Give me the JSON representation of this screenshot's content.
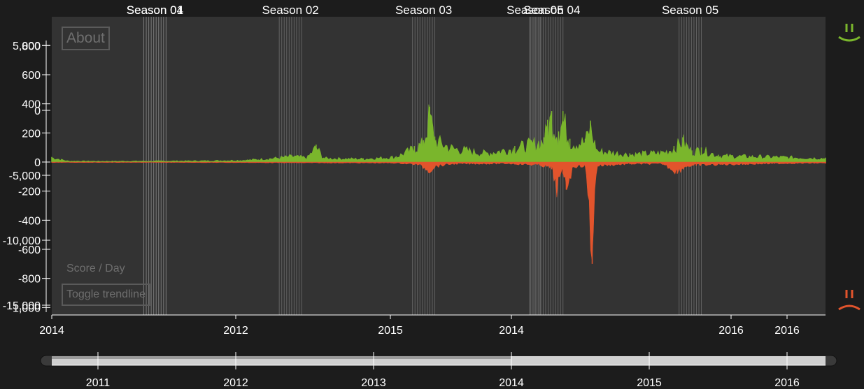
{
  "ui": {
    "about_label": "About",
    "score_label": "Score / Day",
    "trendline_label": "Toggle trendline",
    "positive_icon": "happy-face-icon",
    "negative_icon": "sad-face-icon"
  },
  "colors": {
    "background": "#1c1c1c",
    "plot_background": "#333333",
    "positive": "#7ab62c",
    "negative": "#e2542c",
    "season_line": "#8a8a8a",
    "brush_fill": "#d0d0d0"
  },
  "chart_data": {
    "type": "area",
    "title": "",
    "xlabel": "",
    "ylabel": "Score / Day",
    "xlim": [
      "2010-08-01",
      "2016-05-20"
    ],
    "y_axes": [
      {
        "ticks": [
          "5,000",
          "0",
          "-5,000",
          "-10,000",
          "-15,000"
        ],
        "ylim": [
          -15000,
          5000
        ]
      },
      {
        "ticks": [
          "800",
          "600",
          "400",
          "200",
          "0",
          "-200",
          "-400",
          "-600",
          "-800",
          "-1,000"
        ],
        "ylim": [
          -1000,
          800
        ]
      }
    ],
    "x_tick_labels": [
      "2014",
      "2012",
      "2015",
      "2014",
      "2016",
      "2016"
    ],
    "brush_x_ticks": [
      "2011",
      "2012",
      "2013",
      "2014",
      "2015",
      "2016"
    ],
    "seasons": [
      {
        "label": "Season 01",
        "start": "2011-04-10",
        "end": "2011-06-10"
      },
      {
        "label": "Season 04",
        "start": "2011-04-10",
        "end": "2011-06-10"
      },
      {
        "label": "Season 02",
        "start": "2012-04-15",
        "end": "2012-06-15"
      },
      {
        "label": "Season 03",
        "start": "2013-04-15",
        "end": "2013-06-15"
      },
      {
        "label": "Season 05",
        "start": "2014-03-01",
        "end": "2014-04-01"
      },
      {
        "label": "Season 04",
        "start": "2014-04-01",
        "end": "2014-06-01"
      },
      {
        "label": "Season 05",
        "start": "2015-04-15",
        "end": "2015-06-15"
      }
    ],
    "series": [
      {
        "name": "positive",
        "points": [
          [
            "2010-08-01",
            35
          ],
          [
            "2010-09-15",
            8
          ],
          [
            "2011-01-01",
            6
          ],
          [
            "2011-06-01",
            8
          ],
          [
            "2011-10-01",
            10
          ],
          [
            "2012-01-15",
            15
          ],
          [
            "2012-04-01",
            30
          ],
          [
            "2012-05-20",
            45
          ],
          [
            "2012-07-01",
            35
          ],
          [
            "2012-07-25",
            120
          ],
          [
            "2012-08-15",
            30
          ],
          [
            "2012-12-01",
            25
          ],
          [
            "2013-03-01",
            40
          ],
          [
            "2013-04-20",
            110
          ],
          [
            "2013-05-15",
            150
          ],
          [
            "2013-06-01",
            380
          ],
          [
            "2013-06-15",
            175
          ],
          [
            "2013-08-01",
            110
          ],
          [
            "2013-11-01",
            70
          ],
          [
            "2014-01-20",
            110
          ],
          [
            "2014-04-10",
            170
          ],
          [
            "2014-04-20",
            290
          ],
          [
            "2014-05-01",
            350
          ],
          [
            "2014-05-20",
            210
          ],
          [
            "2014-06-01",
            350
          ],
          [
            "2014-06-20",
            160
          ],
          [
            "2014-08-01",
            160
          ],
          [
            "2014-08-15",
            285
          ],
          [
            "2014-09-01",
            90
          ],
          [
            "2014-12-01",
            60
          ],
          [
            "2015-03-01",
            75
          ],
          [
            "2015-04-01",
            110
          ],
          [
            "2015-04-25",
            170
          ],
          [
            "2015-05-20",
            80
          ],
          [
            "2015-06-15",
            100
          ],
          [
            "2015-08-01",
            50
          ],
          [
            "2016-01-01",
            40
          ],
          [
            "2016-05-20",
            30
          ]
        ]
      },
      {
        "name": "negative",
        "points": [
          [
            "2010-08-01",
            -3
          ],
          [
            "2011-06-01",
            -3
          ],
          [
            "2012-01-01",
            -4
          ],
          [
            "2012-06-01",
            -6
          ],
          [
            "2013-03-01",
            -8
          ],
          [
            "2013-05-01",
            -20
          ],
          [
            "2013-06-01",
            -70
          ],
          [
            "2013-06-15",
            -35
          ],
          [
            "2013-08-01",
            -15
          ],
          [
            "2014-01-01",
            -12
          ],
          [
            "2014-04-01",
            -25
          ],
          [
            "2014-05-01",
            -50
          ],
          [
            "2014-05-15",
            -210
          ],
          [
            "2014-06-01",
            -80
          ],
          [
            "2014-06-10",
            -190
          ],
          [
            "2014-07-01",
            -35
          ],
          [
            "2014-08-01",
            -30
          ],
          [
            "2014-08-20",
            -700
          ],
          [
            "2014-09-01",
            -30
          ],
          [
            "2014-12-01",
            -15
          ],
          [
            "2015-03-01",
            -15
          ],
          [
            "2015-04-10",
            -80
          ],
          [
            "2015-05-01",
            -35
          ],
          [
            "2015-06-01",
            -25
          ],
          [
            "2016-01-01",
            -12
          ],
          [
            "2016-05-20",
            -8
          ]
        ]
      }
    ]
  }
}
